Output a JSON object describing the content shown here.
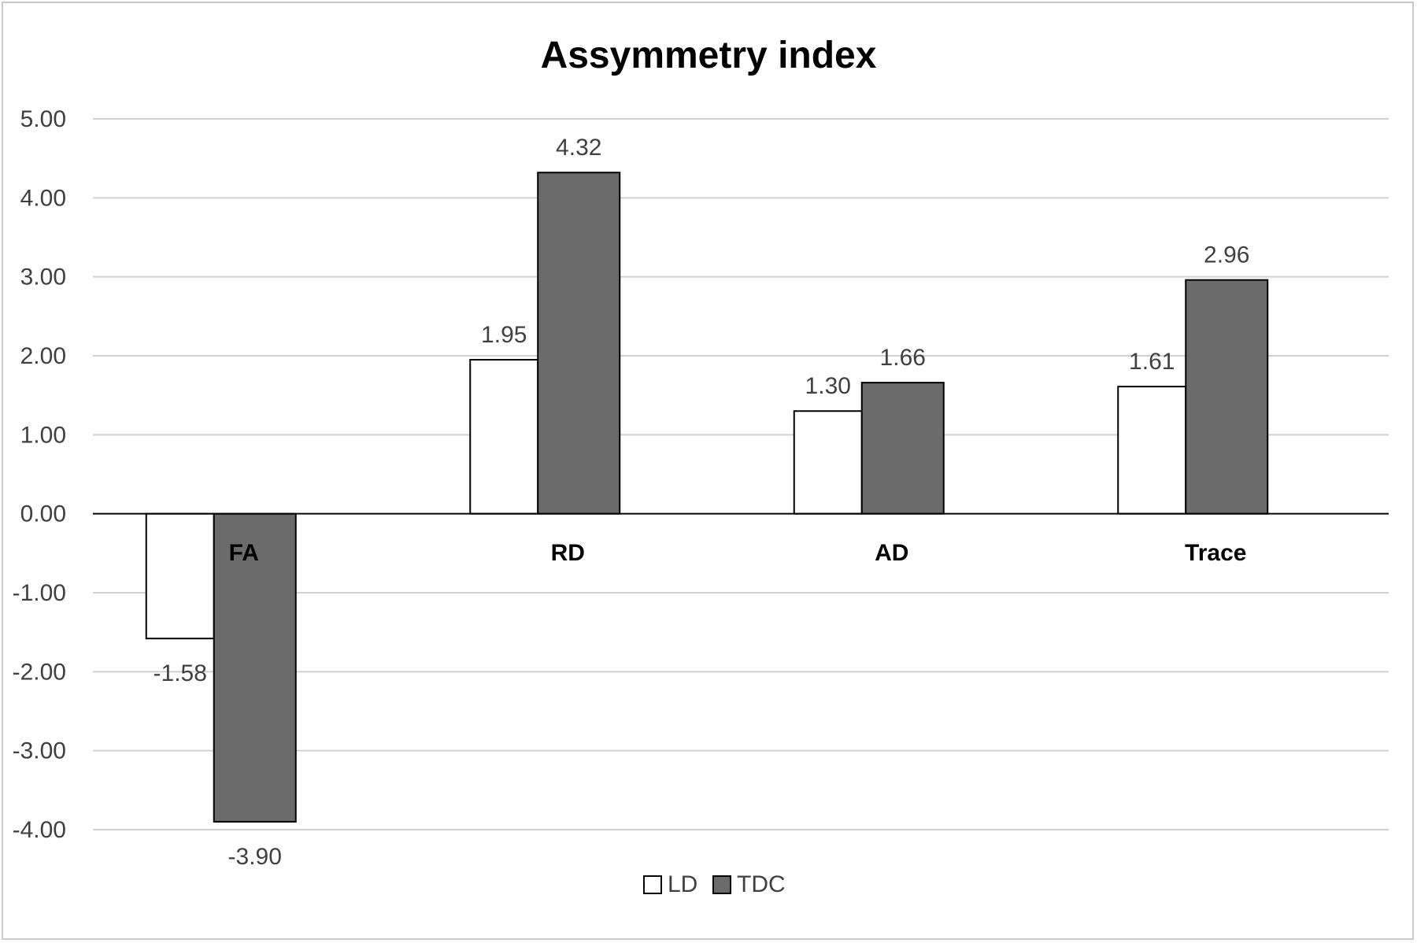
{
  "chart_data": {
    "type": "bar",
    "title": "Assymmetry index",
    "categories": [
      "FA",
      "RD",
      "AD",
      "Trace"
    ],
    "series": [
      {
        "name": "LD",
        "values": [
          -1.58,
          1.95,
          1.3,
          1.61
        ],
        "labels": [
          "-1.58",
          "1.95",
          "1.30",
          "1.61"
        ],
        "color": "#ffffff"
      },
      {
        "name": "TDC",
        "values": [
          -3.9,
          4.32,
          1.66,
          2.96
        ],
        "labels": [
          "-3.90",
          "4.32",
          "1.66",
          "2.96"
        ],
        "color": "#6b6b6b"
      }
    ],
    "ylim": [
      -4,
      5
    ],
    "yticks": [
      "5.00",
      "4.00",
      "3.00",
      "2.00",
      "1.00",
      "0.00",
      "-1.00",
      "-2.00",
      "-3.00",
      "-4.00"
    ],
    "grid": true,
    "legend_position": "bottom"
  }
}
